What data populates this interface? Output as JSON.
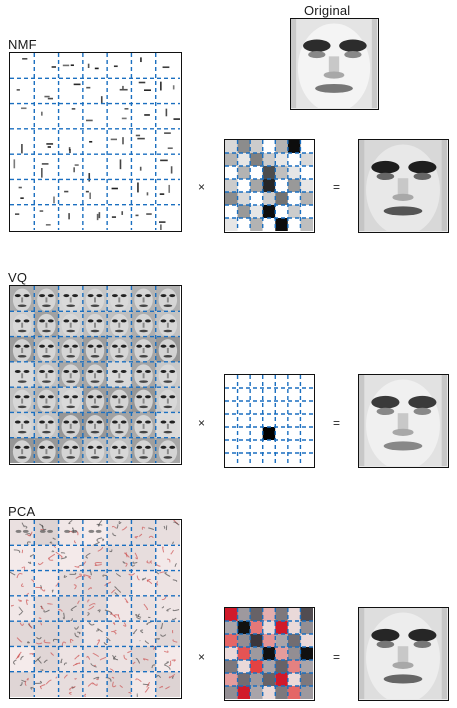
{
  "original": {
    "label": "Original"
  },
  "panels": [
    {
      "id": "nmf",
      "label": "NMF",
      "basis_style": "sparse-parts",
      "encoding_cells": [
        [
          0.15,
          0.45,
          0.2,
          0.0,
          0.3,
          0.95,
          0.0
        ],
        [
          0.3,
          0.1,
          0.5,
          0.2,
          0.1,
          0.0,
          0.15
        ],
        [
          0.0,
          0.3,
          0.0,
          0.7,
          0.25,
          0.1,
          0.0
        ],
        [
          0.2,
          0.0,
          0.35,
          0.85,
          0.0,
          0.4,
          0.1
        ],
        [
          0.45,
          0.15,
          0.0,
          0.2,
          0.55,
          0.0,
          0.3
        ],
        [
          0.0,
          0.4,
          0.1,
          0.95,
          0.0,
          0.2,
          0.0
        ],
        [
          0.1,
          0.0,
          0.3,
          0.0,
          0.95,
          0.0,
          0.25
        ]
      ],
      "encoding_palette": "gray",
      "times": "×",
      "equals": "="
    },
    {
      "id": "vq",
      "label": "VQ",
      "basis_style": "whole-faces",
      "encoding_cells": [
        [
          0,
          0,
          0,
          0,
          0,
          0,
          0
        ],
        [
          0,
          0,
          0,
          0,
          0,
          0,
          0
        ],
        [
          0,
          0,
          0,
          0,
          0,
          0,
          0
        ],
        [
          0,
          0,
          0,
          0,
          0,
          0,
          0
        ],
        [
          0,
          0,
          0,
          1,
          0,
          0,
          0
        ],
        [
          0,
          0,
          0,
          0,
          0,
          0,
          0
        ],
        [
          0,
          0,
          0,
          0,
          0,
          0,
          0
        ]
      ],
      "encoding_palette": "gray",
      "times": "×",
      "equals": "="
    },
    {
      "id": "pca",
      "label": "PCA",
      "basis_style": "eigenfaces",
      "encoding_cells": [
        [
          -0.95,
          0.35,
          0.6,
          -0.2,
          0.5,
          0.15,
          0.7
        ],
        [
          0.3,
          0.95,
          -0.5,
          0.2,
          -0.9,
          0.25,
          0.4
        ],
        [
          -0.6,
          0.4,
          0.8,
          -0.35,
          0.3,
          0.55,
          0.2
        ],
        [
          0.25,
          -0.7,
          0.35,
          0.9,
          -0.3,
          0.4,
          0.95
        ],
        [
          0.5,
          0.2,
          -0.8,
          0.3,
          0.6,
          -0.45,
          0.3
        ],
        [
          -0.3,
          0.55,
          0.35,
          0.6,
          -0.95,
          0.25,
          0.5
        ],
        [
          0.4,
          -0.9,
          0.3,
          0.15,
          0.5,
          -0.6,
          0.35
        ]
      ],
      "encoding_palette": "redblack",
      "times": "×",
      "equals": "="
    }
  ]
}
